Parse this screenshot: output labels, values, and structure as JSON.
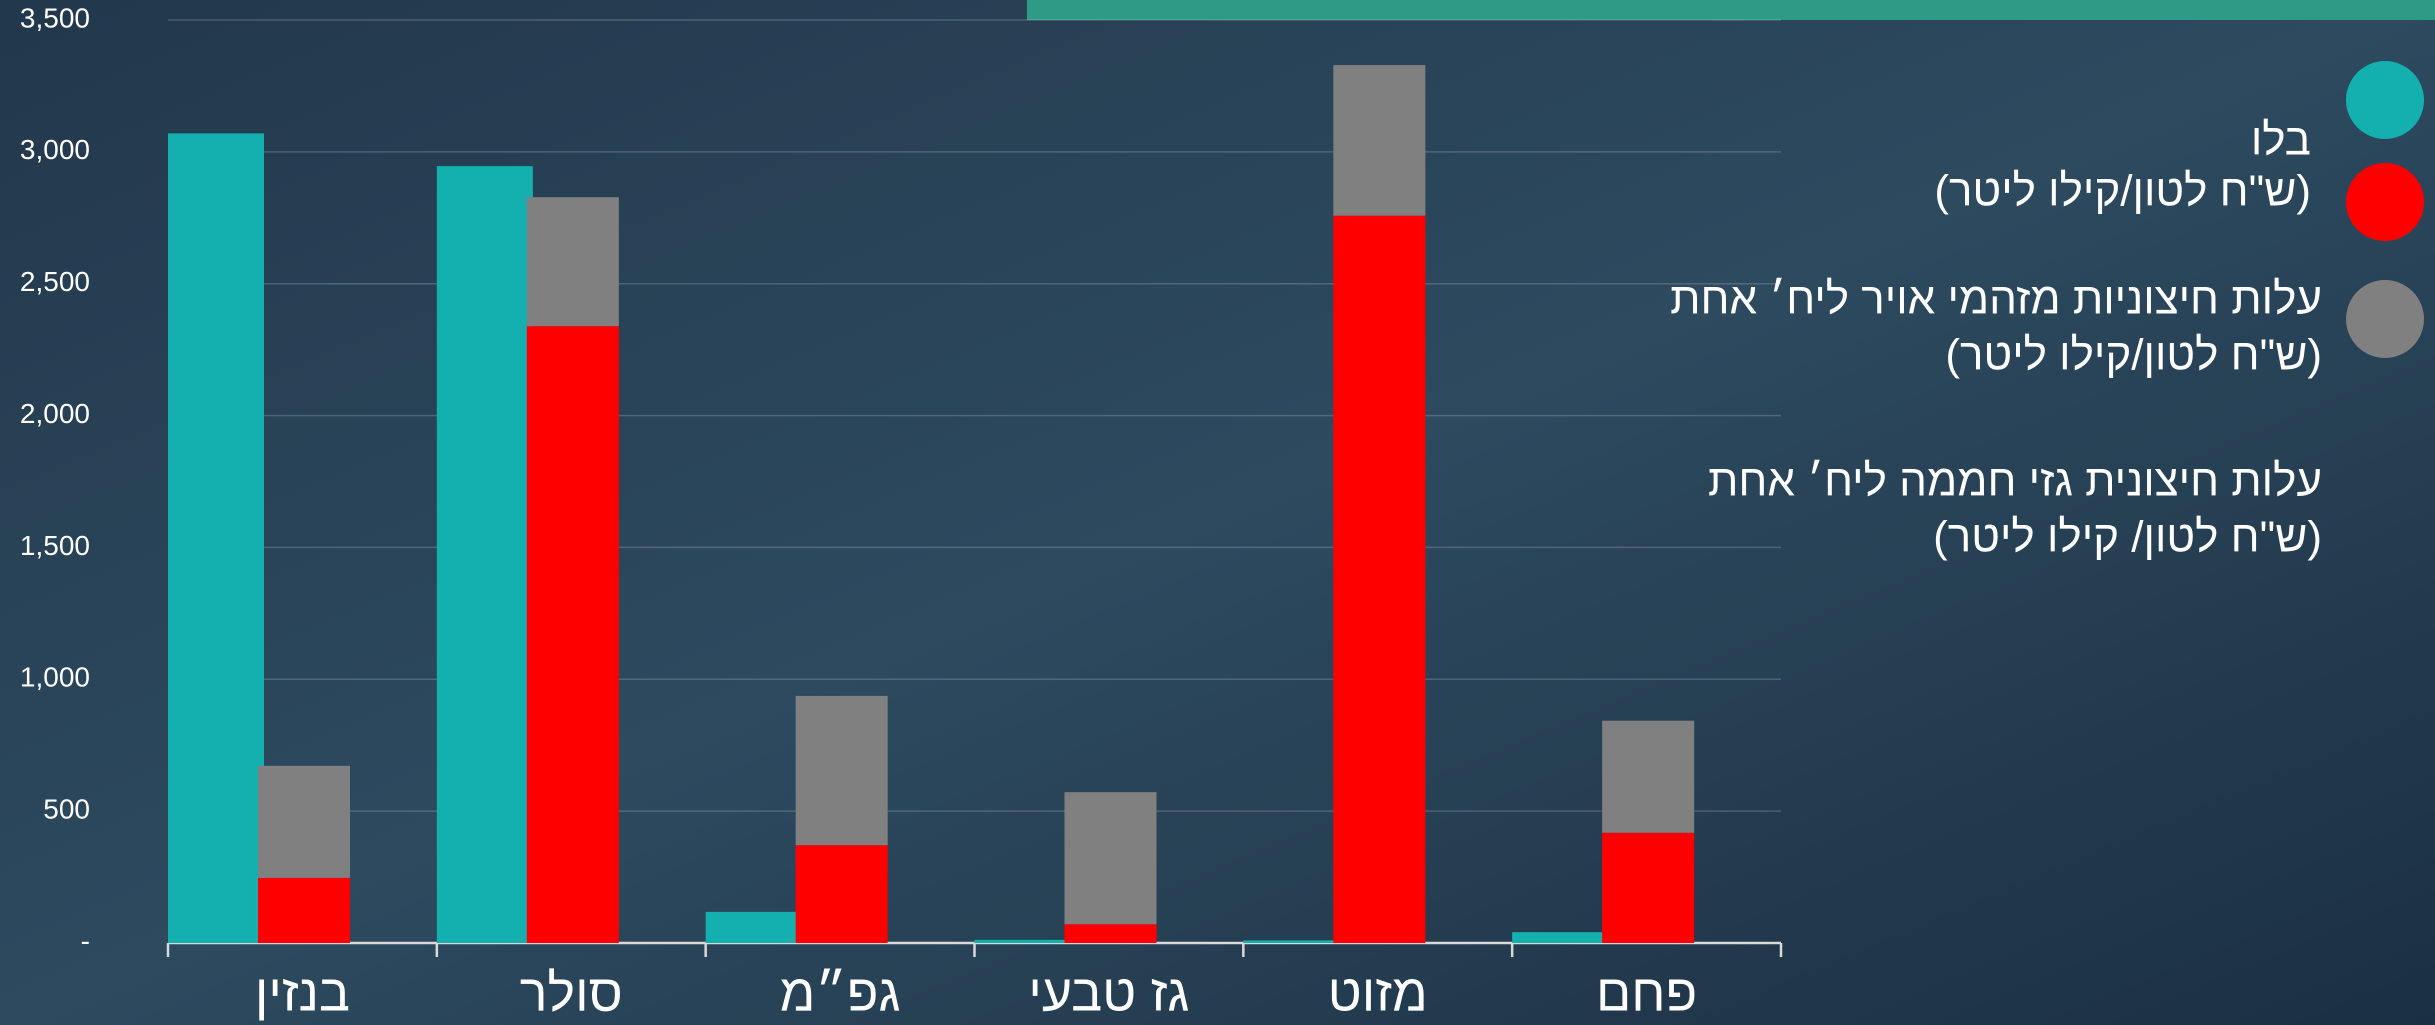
{
  "chart_data": {
    "type": "grouped_stacked_bar",
    "categories": [
      "בנזין",
      "סולר",
      "גפ״מ",
      "גז טבעי",
      "מזוט",
      "פחם"
    ],
    "series": [
      {
        "name": "בלו",
        "unit": "(ש\"ח לטון/קילו ליטר)",
        "color": "#14b0b0",
        "stack": 0,
        "values": [
          3070,
          2946,
          118,
          12,
          10,
          41
        ]
      },
      {
        "name": "עלות חיצוניות מזהמי אויר ליח׳ אחת",
        "unit": "(ש\"ח לטון/קילו ליטר)",
        "color": "#ff0000",
        "stack": 1,
        "values": [
          247,
          2339,
          371,
          71,
          2758,
          418
        ]
      },
      {
        "name": "עלות חיצונית גזי חממה ליח׳ אחת",
        "unit": "(ש\"ח לטון/ קילו ליטר)",
        "color": "#808080",
        "stack": 1,
        "values": [
          425,
          489,
          566,
          501,
          571,
          425
        ]
      }
    ],
    "ylim": [
      0,
      3500
    ],
    "yticks": [
      {
        "value": 0,
        "label": "-"
      },
      500,
      {
        "value": 1000,
        "label": "1,000"
      },
      {
        "value": 1500,
        "label": "1,500"
      },
      {
        "value": 2000,
        "label": "2,000"
      },
      {
        "value": 2500,
        "label": "2,500"
      },
      {
        "value": 3000,
        "label": "3,000"
      },
      {
        "value": 3500,
        "label": "3,500"
      }
    ],
    "grid": true
  }
}
